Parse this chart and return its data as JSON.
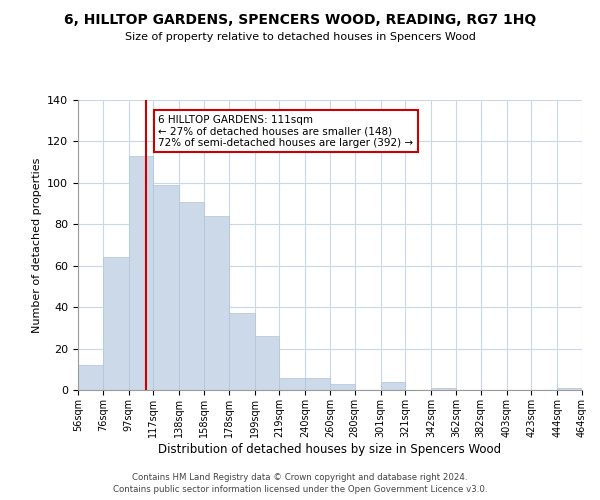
{
  "title": "6, HILLTOP GARDENS, SPENCERS WOOD, READING, RG7 1HQ",
  "subtitle": "Size of property relative to detached houses in Spencers Wood",
  "xlabel": "Distribution of detached houses by size in Spencers Wood",
  "ylabel": "Number of detached properties",
  "bar_color": "#ccd9e8",
  "bar_edge_color": "#b0c4d8",
  "background_color": "#ffffff",
  "grid_color": "#c8d8e8",
  "annotation_box_color": "#ffffff",
  "annotation_box_edge": "#cc0000",
  "vertical_line_color": "#cc0000",
  "tick_labels": [
    "56sqm",
    "76sqm",
    "97sqm",
    "117sqm",
    "138sqm",
    "158sqm",
    "178sqm",
    "199sqm",
    "219sqm",
    "240sqm",
    "260sqm",
    "280sqm",
    "301sqm",
    "321sqm",
    "342sqm",
    "362sqm",
    "382sqm",
    "403sqm",
    "423sqm",
    "444sqm",
    "464sqm"
  ],
  "bar_values": [
    12,
    64,
    113,
    99,
    91,
    84,
    37,
    26,
    6,
    6,
    3,
    0,
    4,
    0,
    1,
    0,
    0,
    0,
    0,
    1
  ],
  "bin_edges": [
    56,
    76,
    97,
    117,
    138,
    158,
    178,
    199,
    219,
    240,
    260,
    280,
    301,
    321,
    342,
    362,
    382,
    403,
    423,
    444,
    464
  ],
  "property_size": 111,
  "vertical_line_x": 111,
  "annotation_text_line1": "6 HILLTOP GARDENS: 111sqm",
  "annotation_text_line2": "← 27% of detached houses are smaller (148)",
  "annotation_text_line3": "72% of semi-detached houses are larger (392) →",
  "ylim": [
    0,
    140
  ],
  "yticks": [
    0,
    20,
    40,
    60,
    80,
    100,
    120,
    140
  ],
  "footnote_line1": "Contains HM Land Registry data © Crown copyright and database right 2024.",
  "footnote_line2": "Contains public sector information licensed under the Open Government Licence v3.0."
}
